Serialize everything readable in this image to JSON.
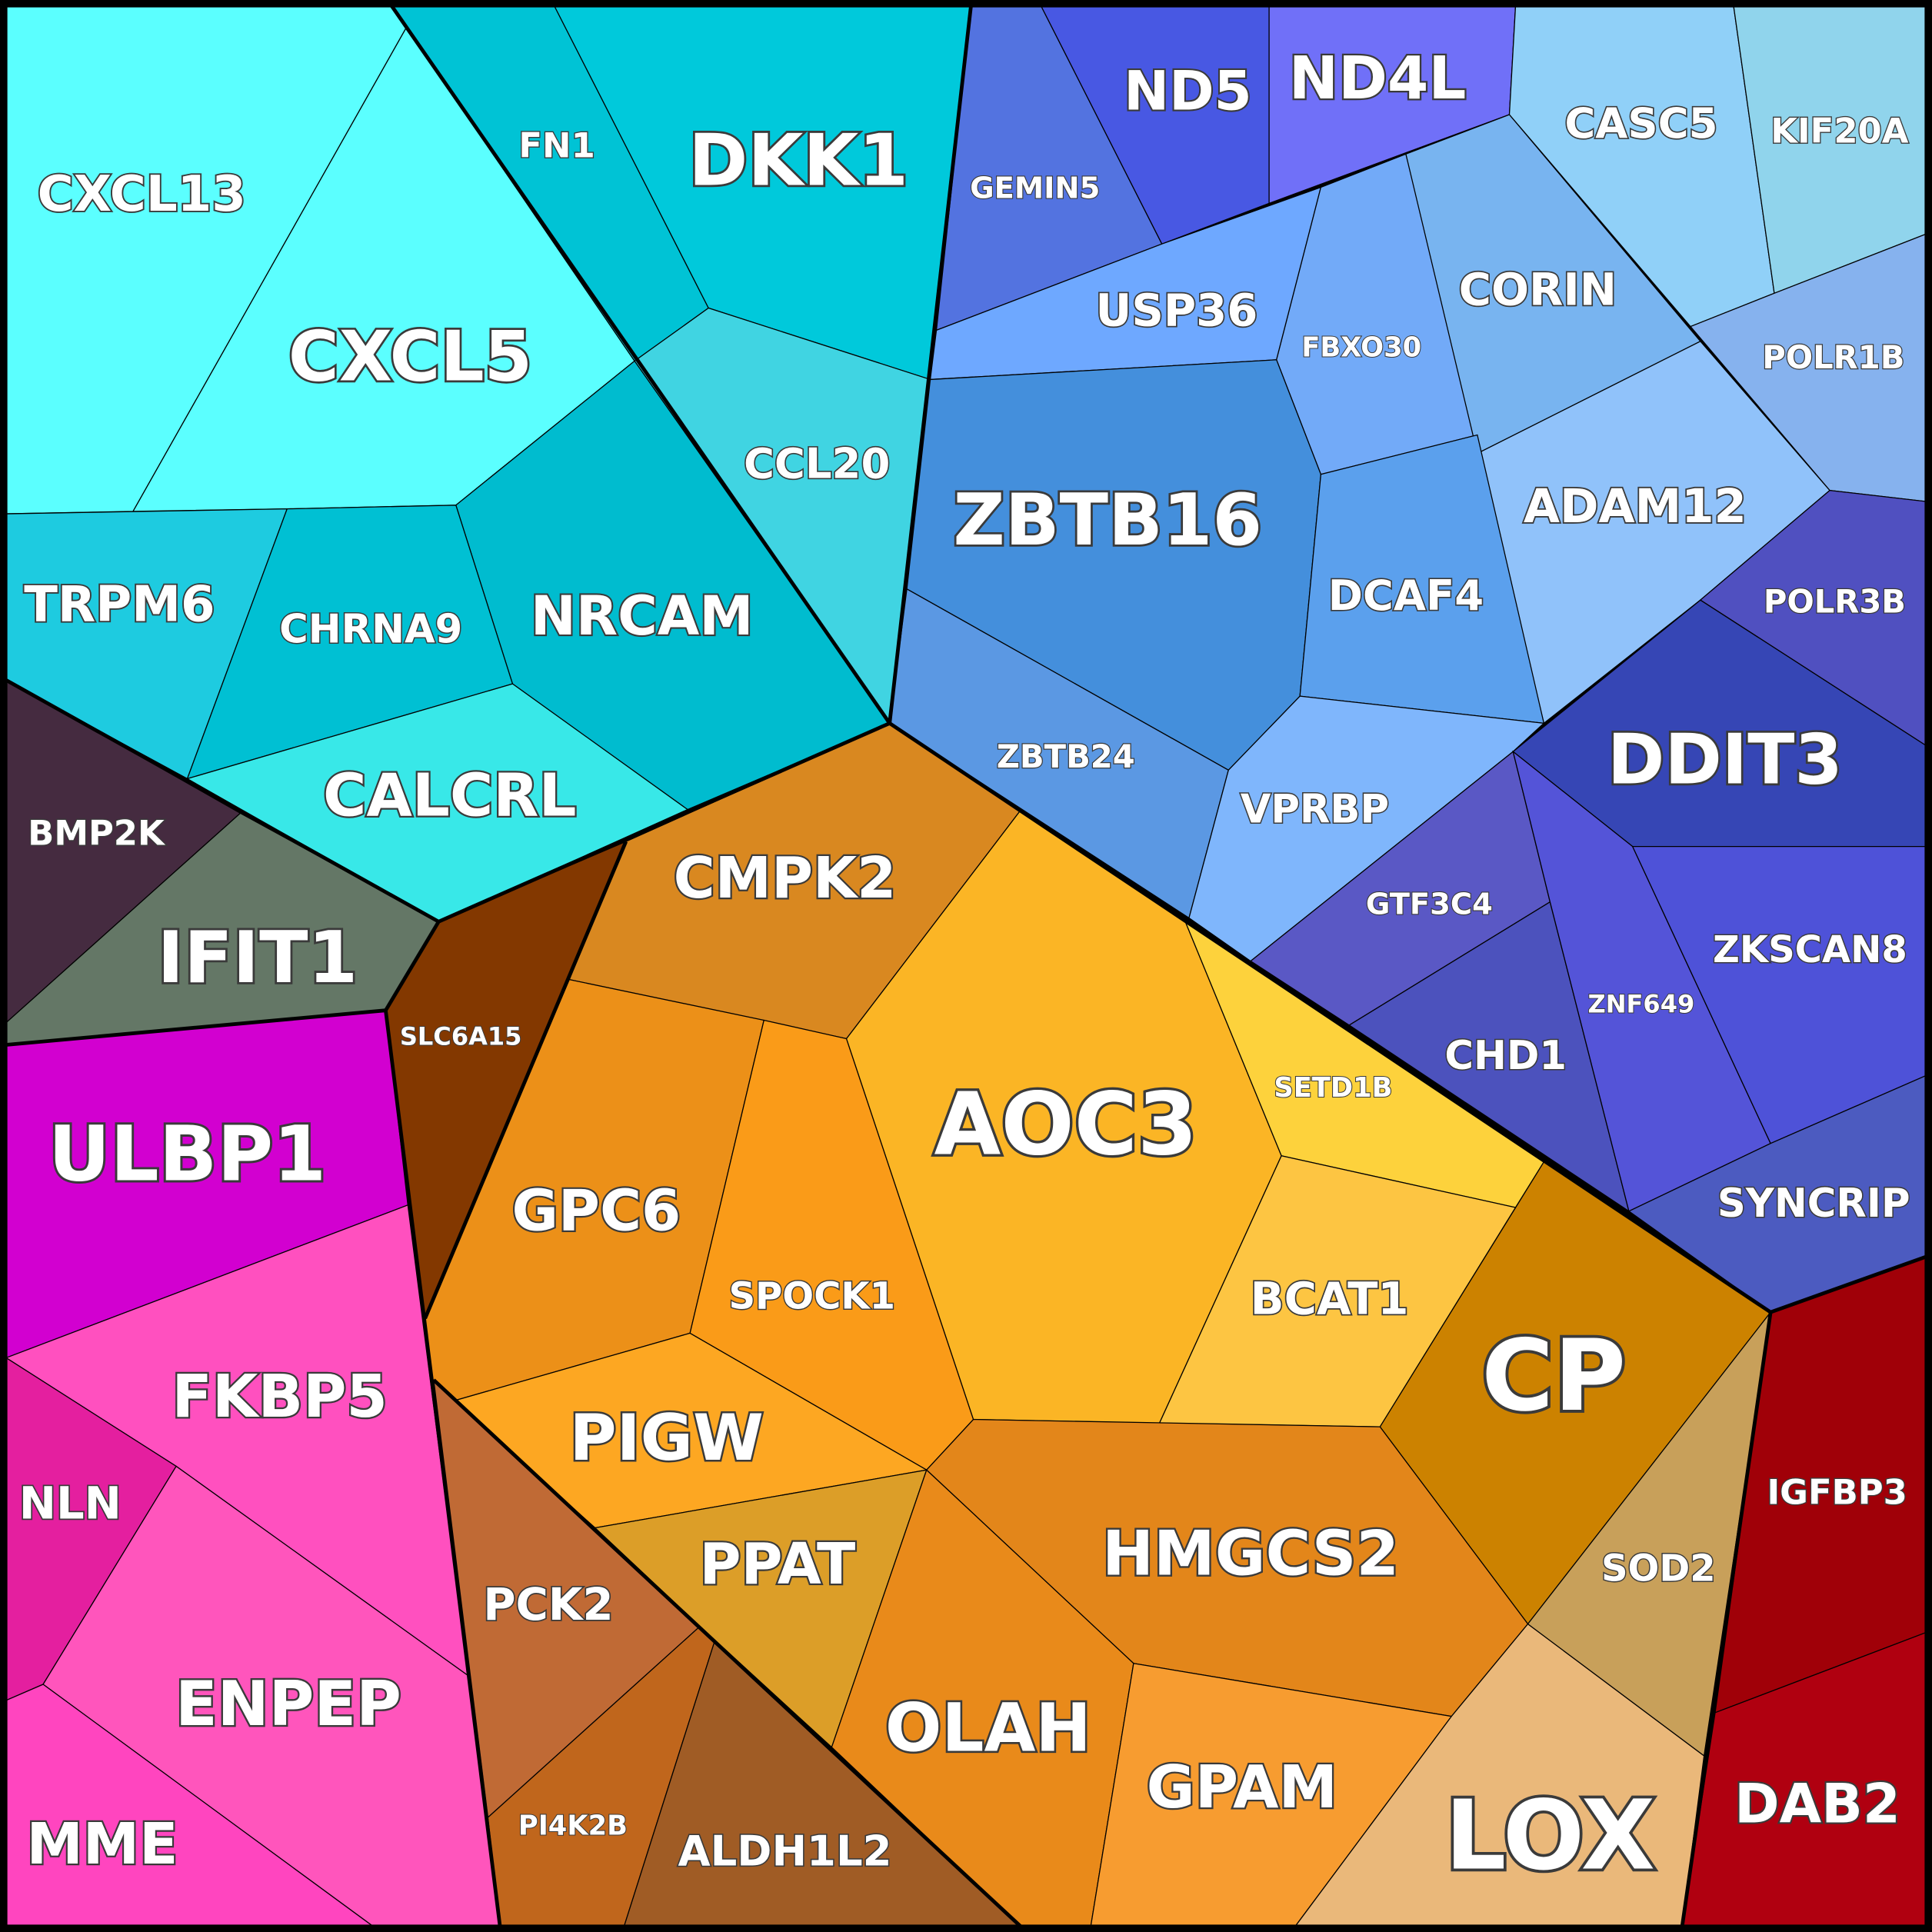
{
  "cells": [
    {
      "label": "CXCL13",
      "color": "#5bffff"
    },
    {
      "label": "CXCL5",
      "color": "#5bffff"
    },
    {
      "label": "FN1",
      "color": "#00c3d5"
    },
    {
      "label": "DKK1",
      "color": "#00c9db"
    },
    {
      "label": "CCL20",
      "color": "#40d4e2"
    },
    {
      "label": "NRCAM",
      "color": "#00bccf"
    },
    {
      "label": "TRPM6",
      "color": "#1ecbe0"
    },
    {
      "label": "CHRNA9",
      "color": "#00c0d3"
    },
    {
      "label": "CALCRL",
      "color": "#38e8e8"
    },
    {
      "label": "BMP2K",
      "color": "#452b40"
    },
    {
      "label": "IFIT1",
      "color": "#647766"
    },
    {
      "label": "ULBP1",
      "color": "#d200d0"
    },
    {
      "label": "FKBP5",
      "color": "#ff50bf"
    },
    {
      "label": "NLN",
      "color": "#e41f9f"
    },
    {
      "label": "ENPEP",
      "color": "#ff55bc"
    },
    {
      "label": "MME",
      "color": "#ff45bf"
    },
    {
      "label": "GEMIN5",
      "color": "#5373e0"
    },
    {
      "label": "ND5",
      "color": "#4858e3"
    },
    {
      "label": "ND4L",
      "color": "#7070f8"
    },
    {
      "label": "USP36",
      "color": "#6ea8ff"
    },
    {
      "label": "FBXO30",
      "color": "#72aaf8"
    },
    {
      "label": "CORIN",
      "color": "#78b4f0"
    },
    {
      "label": "CASC5",
      "color": "#90d0f8"
    },
    {
      "label": "KIF20A",
      "color": "#90d4ec"
    },
    {
      "label": "POLR1B",
      "color": "#86b2ee"
    },
    {
      "label": "ADAM12",
      "color": "#90c2fa"
    },
    {
      "label": "ZBTB16",
      "color": "#448fdc"
    },
    {
      "label": "DCAF4",
      "color": "#5ba0ed"
    },
    {
      "label": "ZBTB24",
      "color": "#5b98e3"
    },
    {
      "label": "VPRBP",
      "color": "#7fb6fc"
    },
    {
      "label": "POLR3B",
      "color": "#5050c0"
    },
    {
      "label": "DDIT3",
      "color": "#3646b5"
    },
    {
      "label": "GTF3C4",
      "color": "#5a58c5"
    },
    {
      "label": "CHD1",
      "color": "#4c52bd"
    },
    {
      "label": "ZNF649",
      "color": "#5454d8"
    },
    {
      "label": "ZKSCAN8",
      "color": "#4e52d8"
    },
    {
      "label": "SYNCRIP",
      "color": "#4c5bc0"
    },
    {
      "label": "CMPK2",
      "color": "#d98820"
    },
    {
      "label": "SLC6A15",
      "color": "#833800"
    },
    {
      "label": "GPC6",
      "color": "#ec9018"
    },
    {
      "label": "SPOCK1",
      "color": "#fa9b18"
    },
    {
      "label": "AOC3",
      "color": "#fbb525"
    },
    {
      "label": "SETD1B",
      "color": "#fdd23c"
    },
    {
      "label": "BCAT1",
      "color": "#fdc542"
    },
    {
      "label": "CP",
      "color": "#cc8200"
    },
    {
      "label": "PIGW",
      "color": "#fda722"
    },
    {
      "label": "PPAT",
      "color": "#dc9e28"
    },
    {
      "label": "HMGCS2",
      "color": "#e3861a"
    },
    {
      "label": "OLAH",
      "color": "#e98a1a"
    },
    {
      "label": "GPAM",
      "color": "#f79c30"
    },
    {
      "label": "LOX",
      "color": "#eab87a"
    },
    {
      "label": "SOD2",
      "color": "#c8a05a"
    },
    {
      "label": "PCK2",
      "color": "#c06a35"
    },
    {
      "label": "PI4K2B",
      "color": "#c0661c"
    },
    {
      "label": "ALDH1L2",
      "color": "#a05c25"
    },
    {
      "label": "IGFBP3",
      "color": "#a00008"
    },
    {
      "label": "DAB2",
      "color": "#b00010"
    }
  ]
}
